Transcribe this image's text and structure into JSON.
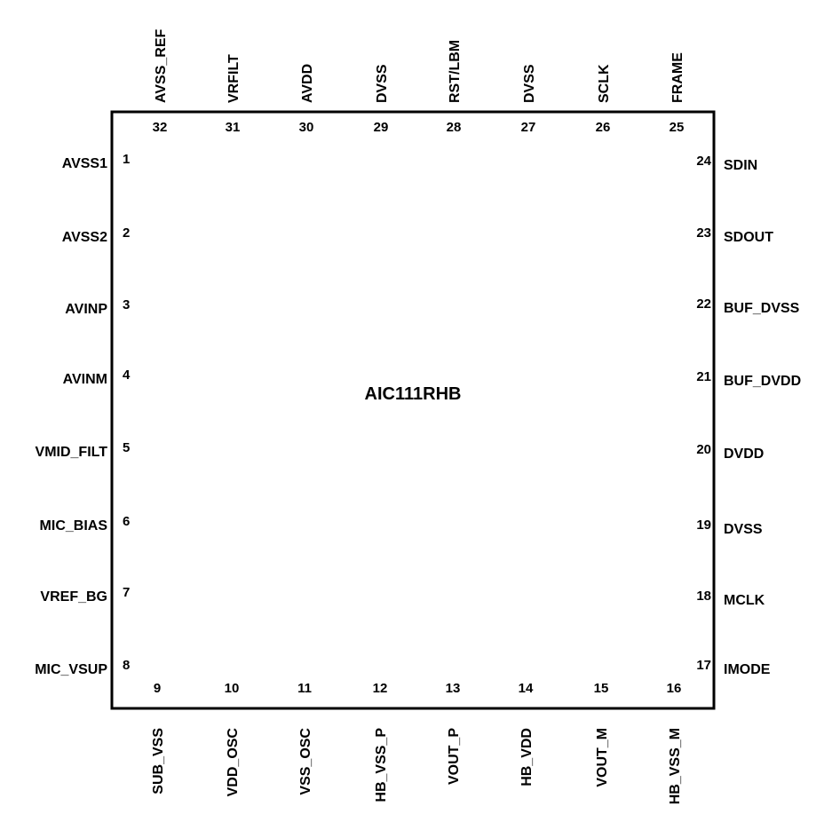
{
  "chip": {
    "name": "AIC111RHB",
    "pins": [
      {
        "number": "1",
        "name": "AVSS1"
      },
      {
        "number": "2",
        "name": "AVSS2"
      },
      {
        "number": "3",
        "name": "AVINP"
      },
      {
        "number": "4",
        "name": "AVINM"
      },
      {
        "number": "5",
        "name": "VMID_FILT"
      },
      {
        "number": "6",
        "name": "MIC_BIAS"
      },
      {
        "number": "7",
        "name": "VREF_BG"
      },
      {
        "number": "8",
        "name": "MIC_VSUP"
      },
      {
        "number": "9",
        "name": "SUB_VSS"
      },
      {
        "number": "10",
        "name": "VDD_OSC"
      },
      {
        "number": "11",
        "name": "VSS_OSC"
      },
      {
        "number": "12",
        "name": "HB_VSS_P"
      },
      {
        "number": "13",
        "name": "VOUT_P"
      },
      {
        "number": "14",
        "name": "HB_VDD"
      },
      {
        "number": "15",
        "name": "VOUT_M"
      },
      {
        "number": "16",
        "name": "HB_VSS_M"
      },
      {
        "number": "17",
        "name": "IMODE"
      },
      {
        "number": "18",
        "name": "MCLK"
      },
      {
        "number": "19",
        "name": "DVSS"
      },
      {
        "number": "20",
        "name": "DVDD"
      },
      {
        "number": "21",
        "name": "BUF_DVDD"
      },
      {
        "number": "22",
        "name": "BUF_DVSS"
      },
      {
        "number": "23",
        "name": "SDOUT"
      },
      {
        "number": "24",
        "name": "SDIN"
      },
      {
        "number": "25",
        "name": "FRAME"
      },
      {
        "number": "26",
        "name": "SCLK"
      },
      {
        "number": "27",
        "name": "DVSS"
      },
      {
        "number": "28",
        "name": "RST/LBM"
      },
      {
        "number": "29",
        "name": "DVSS"
      },
      {
        "number": "30",
        "name": "AVDD"
      },
      {
        "number": "31",
        "name": "VRFILT"
      },
      {
        "number": "32",
        "name": "AVSS_REF"
      }
    ]
  }
}
